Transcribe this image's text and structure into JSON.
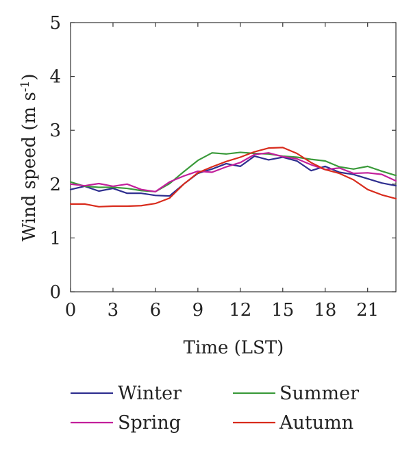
{
  "chart_data": {
    "type": "line",
    "title": "",
    "xlabel": "Time (LST)",
    "ylabel_main": "Wind speed (m s",
    "ylabel_sup": "-1",
    "ylabel_close": ")",
    "xlim": [
      0,
      23
    ],
    "ylim": [
      0,
      5
    ],
    "xticks": [
      0,
      3,
      6,
      9,
      12,
      15,
      18,
      21
    ],
    "yticks": [
      0,
      1,
      2,
      3,
      4,
      5
    ],
    "grid": false,
    "legend_position": "bottom",
    "x": [
      0,
      1,
      2,
      3,
      4,
      5,
      6,
      7,
      8,
      9,
      10,
      11,
      12,
      13,
      14,
      15,
      16,
      17,
      18,
      19,
      20,
      21,
      22,
      23
    ],
    "series": [
      {
        "name": "Winter",
        "color": "#2e2e8f",
        "values": [
          1.9,
          1.96,
          1.87,
          1.92,
          1.83,
          1.83,
          1.79,
          1.78,
          2.0,
          2.2,
          2.28,
          2.38,
          2.33,
          2.52,
          2.45,
          2.5,
          2.43,
          2.25,
          2.33,
          2.22,
          2.18,
          2.1,
          2.02,
          1.97
        ]
      },
      {
        "name": "Summer",
        "color": "#3a9a3a",
        "values": [
          2.04,
          1.96,
          1.94,
          1.94,
          1.92,
          1.88,
          1.86,
          2.01,
          2.23,
          2.44,
          2.58,
          2.56,
          2.59,
          2.57,
          2.56,
          2.52,
          2.5,
          2.46,
          2.43,
          2.32,
          2.28,
          2.33,
          2.24,
          2.16
        ]
      },
      {
        "name": "Spring",
        "color": "#c21f9b",
        "values": [
          2.0,
          1.97,
          2.01,
          1.96,
          2.0,
          1.9,
          1.86,
          2.04,
          2.15,
          2.24,
          2.22,
          2.32,
          2.4,
          2.55,
          2.58,
          2.51,
          2.47,
          2.36,
          2.27,
          2.3,
          2.2,
          2.21,
          2.18,
          2.06
        ]
      },
      {
        "name": "Autumn",
        "color": "#d82b1c",
        "values": [
          1.63,
          1.63,
          1.58,
          1.59,
          1.59,
          1.6,
          1.64,
          1.74,
          2.0,
          2.21,
          2.32,
          2.42,
          2.5,
          2.6,
          2.67,
          2.68,
          2.57,
          2.4,
          2.27,
          2.2,
          2.08,
          1.9,
          1.8,
          1.73
        ]
      }
    ]
  },
  "legend": {
    "order": [
      "Winter",
      "Summer",
      "Spring",
      "Autumn"
    ]
  }
}
